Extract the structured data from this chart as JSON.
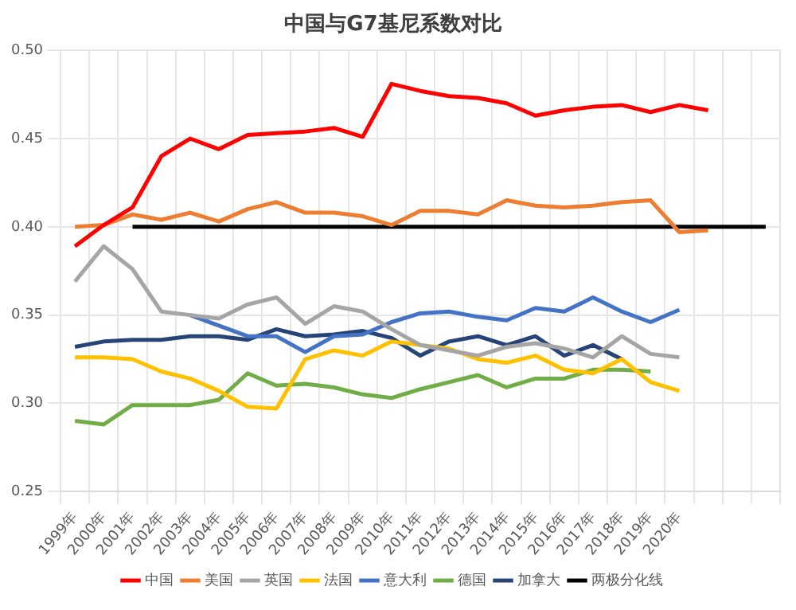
{
  "chart_data": {
    "type": "line",
    "title": "中国与G7基尼系数对比",
    "categories": [
      "1999年",
      "2000年",
      "2001年",
      "2002年",
      "2003年",
      "2004年",
      "2005年",
      "2006年",
      "2007年",
      "2008年",
      "2009年",
      "2010年",
      "2011年",
      "2012年",
      "2013年",
      "2014年",
      "2015年",
      "2016年",
      "2017年",
      "2018年",
      "2019年",
      "2020年",
      null,
      null,
      null
    ],
    "series": [
      {
        "name": "中国",
        "color": "#ff0000",
        "values": [
          0.389,
          0.401,
          0.411,
          0.44,
          0.45,
          0.444,
          0.452,
          0.453,
          0.454,
          0.456,
          0.451,
          0.481,
          0.477,
          0.474,
          0.473,
          0.47,
          0.463,
          0.466,
          0.468,
          0.469,
          0.465,
          0.469,
          0.466,
          null,
          null
        ]
      },
      {
        "name": "美国",
        "color": "#ed7d31",
        "values": [
          0.4,
          0.401,
          0.407,
          0.404,
          0.408,
          0.403,
          0.41,
          0.414,
          0.408,
          0.408,
          0.406,
          0.401,
          0.409,
          0.409,
          0.407,
          0.415,
          0.412,
          0.411,
          0.412,
          0.414,
          0.415,
          0.397,
          0.398,
          null,
          null
        ]
      },
      {
        "name": "英国",
        "color": "#a5a5a5",
        "values": [
          0.369,
          0.389,
          0.376,
          0.352,
          0.35,
          0.348,
          0.356,
          0.36,
          0.345,
          0.355,
          0.352,
          0.342,
          0.333,
          0.33,
          0.327,
          0.332,
          0.334,
          0.331,
          0.326,
          0.338,
          0.328,
          0.326,
          null,
          null,
          null
        ]
      },
      {
        "name": "法国",
        "color": "#ffc000",
        "values": [
          0.326,
          0.326,
          0.325,
          0.318,
          0.314,
          0.307,
          0.298,
          0.297,
          0.325,
          0.33,
          0.327,
          0.335,
          0.333,
          0.331,
          0.325,
          0.323,
          0.327,
          0.319,
          0.317,
          0.325,
          0.312,
          0.307,
          null,
          null,
          null
        ]
      },
      {
        "name": "意大利",
        "color": "#4472c4",
        "values": [
          null,
          null,
          null,
          null,
          0.35,
          0.344,
          0.338,
          0.338,
          0.329,
          0.338,
          0.339,
          0.346,
          0.351,
          0.352,
          0.349,
          0.347,
          0.354,
          0.352,
          0.36,
          0.352,
          0.346,
          0.353,
          null,
          null,
          null
        ]
      },
      {
        "name": "德国",
        "color": "#70ad47",
        "values": [
          0.29,
          0.288,
          0.299,
          0.299,
          0.299,
          0.302,
          0.317,
          0.31,
          0.311,
          0.309,
          0.305,
          0.303,
          0.308,
          0.312,
          0.316,
          0.309,
          0.314,
          0.314,
          0.319,
          0.319,
          0.318,
          null,
          null,
          null,
          null
        ]
      },
      {
        "name": "加拿大",
        "color": "#264478",
        "values": [
          0.332,
          0.335,
          0.336,
          0.336,
          0.338,
          0.338,
          0.336,
          0.342,
          0.338,
          0.339,
          0.341,
          0.337,
          0.327,
          0.335,
          0.338,
          0.333,
          0.338,
          0.327,
          0.333,
          0.325,
          null,
          null,
          null,
          null,
          null
        ]
      },
      {
        "name": "两极分化线",
        "color": "#000000",
        "values": [
          null,
          null,
          0.4,
          0.4,
          0.4,
          0.4,
          0.4,
          0.4,
          0.4,
          0.4,
          0.4,
          0.4,
          0.4,
          0.4,
          0.4,
          0.4,
          0.4,
          0.4,
          0.4,
          0.4,
          0.4,
          0.4,
          0.4,
          0.4,
          0.4
        ]
      }
    ],
    "ylim": [
      0.25,
      0.5
    ],
    "yticks": [
      {
        "value": 0.25,
        "label": "0.25"
      },
      {
        "value": 0.3,
        "label": "0.30"
      },
      {
        "value": 0.35,
        "label": "0.35"
      },
      {
        "value": 0.4,
        "label": "0.40"
      },
      {
        "value": 0.45,
        "label": "0.45"
      },
      {
        "value": 0.5,
        "label": "0.50"
      }
    ],
    "grid": true,
    "legend": "bottom",
    "marker": "none",
    "line_style": "solid"
  }
}
